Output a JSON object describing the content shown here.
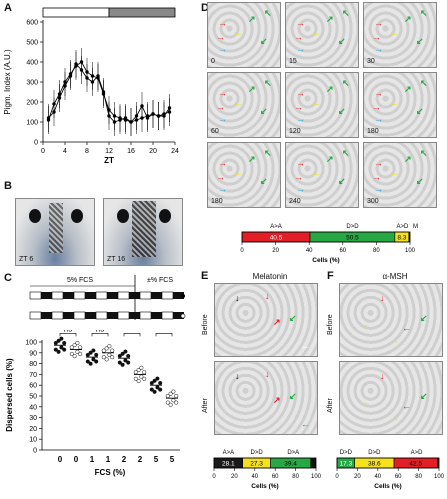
{
  "figure": {
    "letters": [
      "A",
      "B",
      "C",
      "D",
      "E",
      "F"
    ]
  },
  "panel_a": {
    "ylabel": "Pigm. Index (A.U.)",
    "xlabel": "ZT",
    "yticks": [
      "0",
      "100",
      "200",
      "300",
      "400",
      "500",
      "600"
    ],
    "xticks": [
      "0",
      "4",
      "8",
      "12",
      "16",
      "20",
      "24"
    ]
  },
  "panel_b": {
    "labels": [
      "ZT 6",
      "ZT 16"
    ]
  },
  "panel_c": {
    "ylabel": "Dispersed cells (%)",
    "xlabel": "FCS (%)",
    "yticks": [
      "0",
      "10",
      "20",
      "30",
      "40",
      "50",
      "60",
      "70",
      "80",
      "90",
      "100"
    ],
    "xticks": [
      "0",
      "0",
      "1",
      "1",
      "2",
      "2",
      "5",
      "5"
    ],
    "protocol_left": "5% FCS",
    "protocol_right": "±% FCS",
    "sig": [
      "ns",
      "ns",
      "****",
      "**"
    ]
  },
  "panel_d": {
    "times": [
      "0",
      "15",
      "30",
      "60",
      "120",
      "180",
      "180",
      "240",
      "300"
    ],
    "bar_xlabel": "Cells (%)",
    "bar_ticks": [
      "0",
      "20",
      "40",
      "60",
      "80",
      "100"
    ],
    "bar_labels": [
      "A>A",
      "D>D",
      "A>D",
      "M"
    ],
    "bar_values": [
      "40.5",
      "50.5",
      "8.3"
    ]
  },
  "panel_e": {
    "title": "Melatonin",
    "rows": [
      "Before",
      "After"
    ],
    "bar_labels": [
      "A>A",
      "D>D",
      "D>A"
    ],
    "bar_values": [
      "28.1",
      "27.3",
      "39.4"
    ],
    "bar_xlabel": "Cells (%)",
    "bar_ticks": [
      "0",
      "20",
      "40",
      "60",
      "80",
      "100"
    ]
  },
  "panel_f": {
    "title": "α-MSH",
    "rows": [
      "Before",
      "After"
    ],
    "bar_labels": [
      "D>D",
      "D>D",
      "A>D"
    ],
    "bar_values": [
      "17.3",
      "38.6",
      "42.5"
    ],
    "bar_xlabel": "Cells (%)",
    "bar_ticks": [
      "0",
      "20",
      "40",
      "60",
      "80",
      "100"
    ]
  },
  "chart_data": [
    {
      "type": "line",
      "ylabel": "Pigm. Index (A.U.)",
      "xlabel": "ZT",
      "x": [
        1,
        2,
        3,
        4,
        5,
        6,
        7,
        8,
        9,
        10,
        11,
        12,
        13,
        14,
        15,
        16,
        17,
        18,
        19,
        20,
        21,
        22,
        23
      ],
      "series": [
        {
          "values": [
            120,
            150,
            220,
            280,
            330,
            390,
            360,
            320,
            300,
            330,
            250,
            130,
            100,
            110,
            120,
            100,
            130,
            180,
            120,
            140,
            130,
            130,
            170
          ]
        },
        {
          "values": [
            110,
            190,
            240,
            300,
            340,
            380,
            400,
            350,
            330,
            320,
            240,
            160,
            130,
            120,
            110,
            100,
            110,
            120,
            130,
            140,
            130,
            140,
            150
          ]
        }
      ],
      "ylim": [
        0,
        600
      ],
      "xlim": [
        0,
        24
      ]
    },
    {
      "type": "scatter",
      "ylabel": "Dispersed cells (%)",
      "xlabel": "FCS (%)",
      "categories": [
        "0",
        "0",
        "1",
        "1",
        "2",
        "2",
        "5",
        "5"
      ],
      "values": [
        97,
        93,
        86,
        90,
        85,
        70,
        60,
        48
      ],
      "ylim": [
        0,
        100
      ]
    },
    {
      "type": "bar",
      "categories": [
        "A>A",
        "D>D",
        "A>D"
      ],
      "values": [
        40.5,
        50.5,
        8.3
      ],
      "xlabel": "Cells (%)",
      "xlim": [
        0,
        100
      ]
    },
    {
      "type": "bar",
      "categories": [
        "A>A",
        "D>D",
        "D>A"
      ],
      "values": [
        28.1,
        27.3,
        39.4
      ],
      "xlabel": "Cells (%)",
      "xlim": [
        0,
        100
      ]
    },
    {
      "type": "bar",
      "categories": [
        "D>D",
        "D>D",
        "A>D"
      ],
      "values": [
        17.3,
        38.6,
        42.5
      ],
      "xlabel": "Cells (%)",
      "xlim": [
        0,
        100
      ]
    }
  ],
  "colors": {
    "red": "#e21e26",
    "green": "#27a844",
    "yellow": "#f5e11c",
    "blue": "#2fa8e0",
    "black": "#111111",
    "white": "#ffffff",
    "barBlack": "#1a1a1a"
  }
}
